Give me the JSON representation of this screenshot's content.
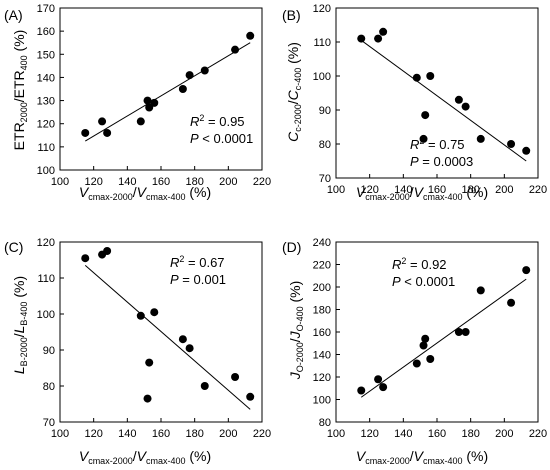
{
  "chart_data": [
    {
      "type": "scatter",
      "panel_label": "(A)",
      "x_unit": "(%)",
      "y_unit": "(%)",
      "xlim": [
        100,
        220
      ],
      "ylim": [
        100,
        170
      ],
      "xticks": [
        100,
        120,
        140,
        160,
        180,
        200,
        220
      ],
      "yticks": [
        100,
        110,
        120,
        130,
        140,
        150,
        160,
        170
      ],
      "r2_value": "= 0.95",
      "p_value": "< 0.0001",
      "fit": {
        "x": [
          115,
          213
        ],
        "y": [
          112.5,
          155
        ]
      },
      "points": {
        "x": [
          115,
          125,
          128,
          148,
          152,
          153,
          156,
          173,
          177,
          186,
          204,
          213
        ],
        "y": [
          116,
          121,
          116,
          121,
          130,
          127,
          129,
          135,
          141,
          143,
          152,
          158
        ]
      }
    },
    {
      "type": "scatter",
      "panel_label": "(B)",
      "x_unit": "(%)",
      "y_unit": "(%)",
      "xlim": [
        100,
        220
      ],
      "ylim": [
        70,
        120
      ],
      "xticks": [
        100,
        120,
        140,
        160,
        180,
        200,
        220
      ],
      "yticks": [
        70,
        80,
        90,
        100,
        110,
        120
      ],
      "r2_value": "= 0.75",
      "p_value": "= 0.0003",
      "fit": {
        "x": [
          115,
          213
        ],
        "y": [
          110.5,
          75
        ]
      },
      "points": {
        "x": [
          115,
          125,
          128,
          148,
          152,
          153,
          156,
          173,
          177,
          186,
          204,
          213
        ],
        "y": [
          111,
          111,
          113,
          99.5,
          81.5,
          88.5,
          100,
          93,
          91,
          81.5,
          80,
          78
        ]
      }
    },
    {
      "type": "scatter",
      "panel_label": "(C)",
      "x_unit": "(%)",
      "y_unit": "(%)",
      "xlim": [
        100,
        220
      ],
      "ylim": [
        70,
        120
      ],
      "xticks": [
        100,
        120,
        140,
        160,
        180,
        200,
        220
      ],
      "yticks": [
        70,
        80,
        90,
        100,
        110,
        120
      ],
      "r2_value": "= 0.67",
      "p_value": "= 0.001",
      "fit": {
        "x": [
          115,
          213
        ],
        "y": [
          113.5,
          73.5
        ]
      },
      "points": {
        "x": [
          115,
          125,
          128,
          148,
          152,
          153,
          156,
          173,
          177,
          186,
          204,
          213
        ],
        "y": [
          115.5,
          116.5,
          117.5,
          99.5,
          76.5,
          86.5,
          100.5,
          93,
          90.5,
          80,
          82.5,
          77
        ]
      }
    },
    {
      "type": "scatter",
      "panel_label": "(D)",
      "x_unit": "(%)",
      "y_unit": "(%)",
      "xlim": [
        100,
        220
      ],
      "ylim": [
        80,
        240
      ],
      "xticks": [
        100,
        120,
        140,
        160,
        180,
        200,
        220
      ],
      "yticks": [
        80,
        100,
        120,
        140,
        160,
        180,
        200,
        220,
        240
      ],
      "r2_value": "= 0.92",
      "p_value": "< 0.0001",
      "fit": {
        "x": [
          115,
          213
        ],
        "y": [
          102,
          207
        ]
      },
      "points": {
        "x": [
          115,
          125,
          128,
          148,
          152,
          153,
          156,
          173,
          177,
          186,
          204,
          213
        ],
        "y": [
          108,
          118,
          111,
          132,
          148,
          154,
          136,
          160,
          160,
          197,
          186,
          215
        ]
      }
    }
  ]
}
